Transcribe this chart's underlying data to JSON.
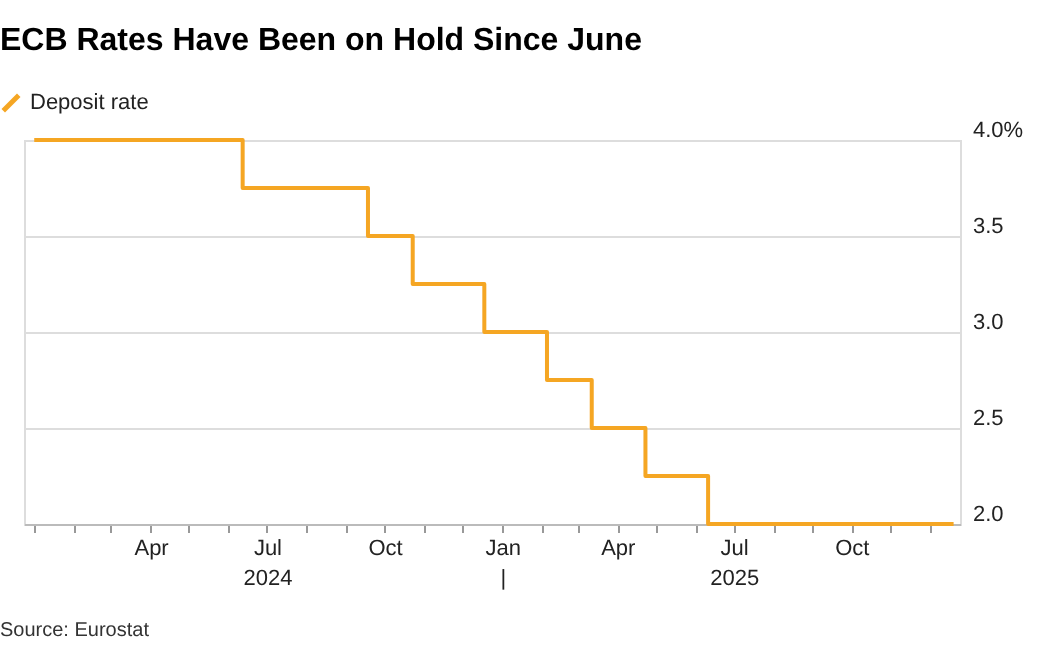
{
  "chart_data": {
    "type": "step",
    "title": "ECB Rates Have Been on Hold Since June",
    "series": [
      {
        "name": "Deposit rate",
        "color": "#f5a623",
        "x": [
          "2024-01-01",
          "2024-06-12",
          "2024-09-18",
          "2024-10-23",
          "2024-12-18",
          "2025-02-05",
          "2025-03-12",
          "2025-04-23",
          "2025-06-11",
          "2025-12-20"
        ],
        "values": [
          4.0,
          3.75,
          3.5,
          3.25,
          3.0,
          2.75,
          2.5,
          2.25,
          2.0,
          2.0
        ]
      }
    ],
    "xlim": [
      "2023-12-24",
      "2025-12-25"
    ],
    "xticks": [
      {
        "value": "2024-01-01",
        "label": null
      },
      {
        "value": "2024-02-01",
        "label": null
      },
      {
        "value": "2024-03-01",
        "label": null
      },
      {
        "value": "2024-04-01",
        "label": "Apr"
      },
      {
        "value": "2024-05-01",
        "label": null
      },
      {
        "value": "2024-06-01",
        "label": null
      },
      {
        "value": "2024-07-01",
        "label": "Jul\n2024"
      },
      {
        "value": "2024-08-01",
        "label": null
      },
      {
        "value": "2024-09-01",
        "label": null
      },
      {
        "value": "2024-10-01",
        "label": "Oct"
      },
      {
        "value": "2024-11-01",
        "label": null
      },
      {
        "value": "2024-12-01",
        "label": null
      },
      {
        "value": "2025-01-01",
        "label": "Jan\n|"
      },
      {
        "value": "2025-02-01",
        "label": null
      },
      {
        "value": "2025-03-01",
        "label": null
      },
      {
        "value": "2025-04-01",
        "label": "Apr"
      },
      {
        "value": "2025-05-01",
        "label": null
      },
      {
        "value": "2025-06-01",
        "label": null
      },
      {
        "value": "2025-07-01",
        "label": "Jul\n2025"
      },
      {
        "value": "2025-08-01",
        "label": null
      },
      {
        "value": "2025-09-01",
        "label": null
      },
      {
        "value": "2025-10-01",
        "label": "Oct"
      },
      {
        "value": "2025-11-01",
        "label": null
      },
      {
        "value": "2025-12-01",
        "label": null
      }
    ],
    "ylim": [
      2.0,
      4.0
    ],
    "yticks": [
      {
        "value": 2.0,
        "label": "2.0"
      },
      {
        "value": 2.5,
        "label": "2.5"
      },
      {
        "value": 3.0,
        "label": "3.0"
      },
      {
        "value": 3.5,
        "label": "3.5"
      },
      {
        "value": 4.0,
        "label": "4.0%"
      }
    ],
    "grid": "y",
    "legend": "top left",
    "line_style": "solid",
    "marker": "none",
    "annotations": [
      "Source: Eurostat"
    ]
  }
}
